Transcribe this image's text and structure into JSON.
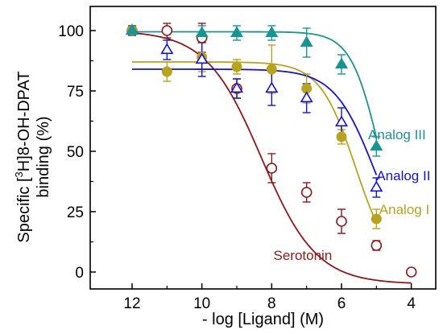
{
  "chart_data": {
    "type": "line",
    "xlabel": "- log [Ligand] (M)",
    "ylabel_parts": {
      "line1": "Specific [",
      "sup": "3",
      "line1_rest": "H]8-OH-DPAT",
      "line2": "binding (%)"
    },
    "xlim": [
      13.2,
      3.3
    ],
    "ylim": [
      -7,
      110
    ],
    "x_ticks": [
      12,
      10,
      8,
      6,
      4
    ],
    "y_ticks": [
      0,
      25,
      50,
      75,
      100
    ],
    "grid": false,
    "legend": "none",
    "series": [
      {
        "name": "Serotonin",
        "color": "#8B1A1A",
        "marker": "open-circle",
        "x": [
          12,
          11,
          10,
          9,
          8,
          7,
          6,
          5,
          4
        ],
        "y": [
          100,
          100,
          97,
          76,
          43,
          33,
          21,
          11,
          0
        ],
        "err": [
          2,
          3,
          6,
          4,
          6,
          4,
          5,
          2,
          0
        ],
        "fit": {
          "top": 100,
          "bottom": -5,
          "ic50_neglog": 8.3,
          "hill": 0.55
        }
      },
      {
        "name": "Analog I",
        "color": "#B8A31F",
        "marker": "filled-circle",
        "x": [
          12,
          11,
          10,
          9,
          8,
          7,
          6,
          5
        ],
        "y": [
          100,
          83,
          89,
          85,
          84,
          76,
          56,
          22
        ],
        "err": [
          2,
          4,
          6,
          3,
          10,
          6,
          3,
          4
        ],
        "fit": {
          "top": 87,
          "bottom": 0,
          "ic50_neglog": 5.6,
          "hill": 0.85
        }
      },
      {
        "name": "Analog II",
        "color": "#1414CC",
        "marker": "open-triangle",
        "x": [
          12,
          11,
          10,
          9,
          8,
          7,
          6,
          5
        ],
        "y": [
          100,
          92,
          88,
          76,
          76,
          72,
          62,
          35
        ],
        "err": [
          2,
          4,
          7,
          4,
          7,
          6,
          6,
          4
        ],
        "fit": {
          "top": 84,
          "bottom": 0,
          "ic50_neglog": 5.05,
          "hill": 0.75
        }
      },
      {
        "name": "Analog III",
        "color": "#1A9393",
        "marker": "filled-triangle",
        "x": [
          12,
          10,
          9,
          8,
          7,
          6,
          5
        ],
        "y": [
          100,
          99,
          99,
          99,
          95,
          86,
          52
        ],
        "err": [
          2,
          3,
          3,
          3,
          6,
          4,
          4
        ],
        "fit": {
          "top": 99.5,
          "bottom": 0,
          "ic50_neglog": 4.9,
          "hill": 1.05
        }
      }
    ],
    "annotations": [
      {
        "text": "Serotonin",
        "series": "Serotonin"
      },
      {
        "text": "Analog I",
        "series": "Analog I"
      },
      {
        "text": "Analog II",
        "series": "Analog II"
      },
      {
        "text": "Analog III",
        "series": "Analog III"
      }
    ]
  }
}
